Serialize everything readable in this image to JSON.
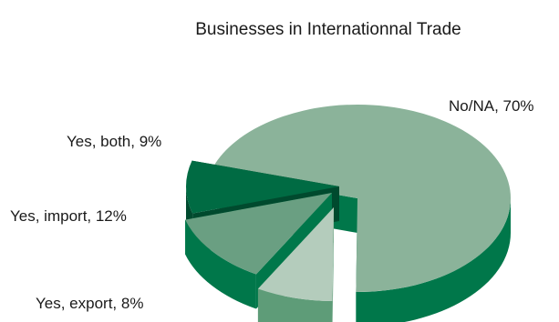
{
  "chart_data": {
    "type": "pie",
    "title": "Businesses in Internationnal Trade",
    "three_d": true,
    "exploded": true,
    "slices": [
      {
        "label": "No/NA, 70%",
        "category": "No/NA",
        "value": 70,
        "top_color": "#8bb39a",
        "side_color": "#00774a"
      },
      {
        "label": "Yes, export, 8%",
        "category": "Yes, export",
        "value": 8,
        "top_color": "#b4ccbc",
        "side_color": "#5e9c78"
      },
      {
        "label": "Yes, import, 12%",
        "category": "Yes, import",
        "value": 12,
        "top_color": "#6a9f82",
        "side_color": "#00774a"
      },
      {
        "label": "Yes, both, 9%",
        "category": "Yes, both",
        "value": 9,
        "top_color": "#006b43",
        "side_color": "#004a2e"
      }
    ]
  }
}
